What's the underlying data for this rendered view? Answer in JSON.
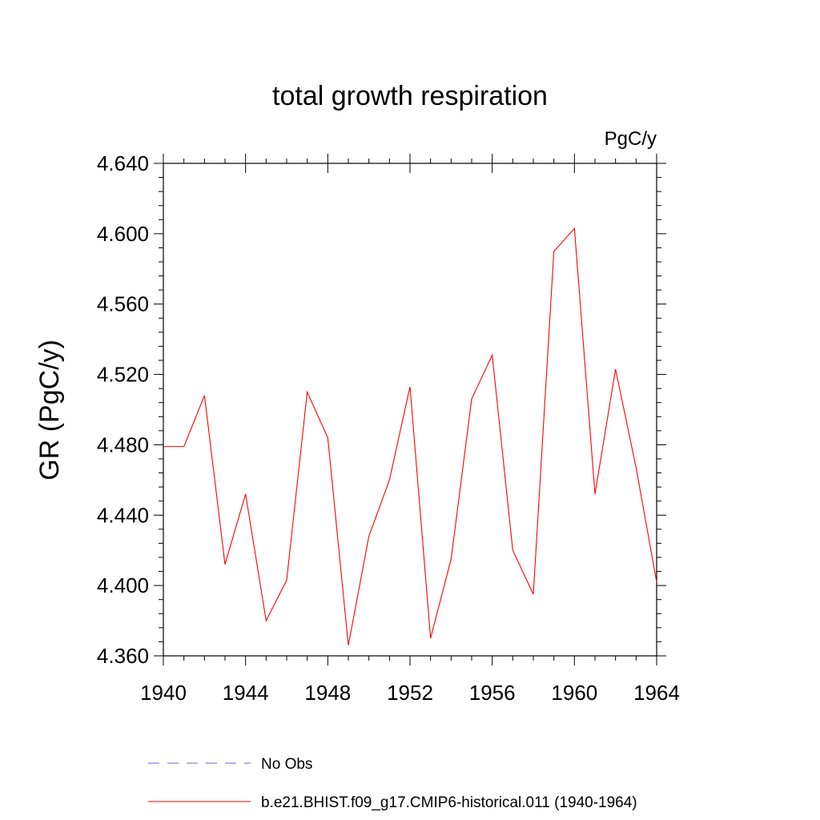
{
  "chart_data": {
    "type": "line",
    "title": "total growth respiration",
    "units_label": "PgC/y",
    "xlabel": "",
    "ylabel": "GR  (PgC/y)",
    "xlim": [
      1940,
      1964
    ],
    "ylim": [
      4.36,
      4.64
    ],
    "x_ticks": [
      "1940",
      "1944",
      "1948",
      "1952",
      "1956",
      "1960",
      "1964"
    ],
    "y_ticks": [
      "4.360",
      "4.400",
      "4.440",
      "4.480",
      "4.520",
      "4.560",
      "4.600",
      "4.640"
    ],
    "grid": false,
    "legend_placement": "bottom",
    "series": [
      {
        "name": "b.e21.BHIST.f09_g17.CMIP6-historical.011 (1940-1964)",
        "color": "#ff0000",
        "style": "solid",
        "x": [
          1940,
          1941,
          1942,
          1943,
          1944,
          1945,
          1946,
          1947,
          1948,
          1949,
          1950,
          1951,
          1952,
          1953,
          1954,
          1955,
          1956,
          1957,
          1958,
          1959,
          1960,
          1961,
          1962,
          1963,
          1964
        ],
        "values": [
          4.479,
          4.479,
          4.508,
          4.412,
          4.452,
          4.38,
          4.403,
          4.51,
          4.484,
          4.366,
          4.428,
          4.46,
          4.513,
          4.37,
          4.415,
          4.506,
          4.531,
          4.42,
          4.395,
          4.59,
          4.603,
          4.452,
          4.523,
          4.467,
          4.402
        ]
      }
    ],
    "legend": [
      {
        "label": "No Obs",
        "color": "#6a6ad0",
        "style": "dashed"
      },
      {
        "label": "b.e21.BHIST.f09_g17.CMIP6-historical.011 (1940-1964)",
        "color": "#ff0000",
        "style": "solid"
      }
    ]
  }
}
